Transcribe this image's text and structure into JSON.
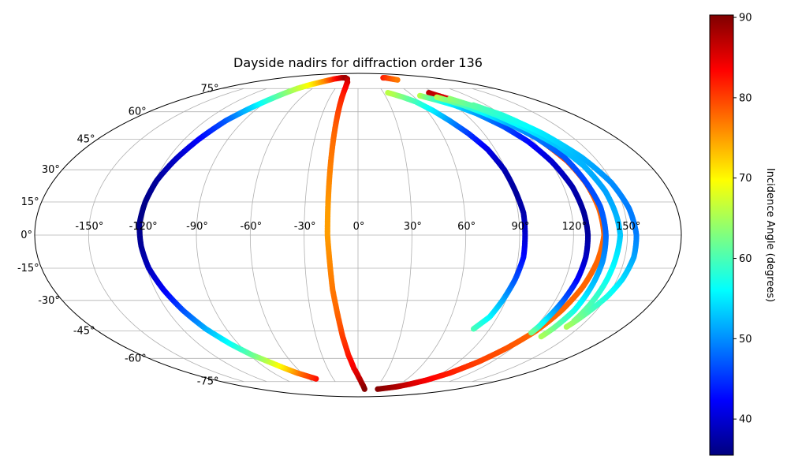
{
  "chart_data": {
    "type": "scatter",
    "projection": "mollweide",
    "title": "Dayside nadirs for diffraction order 136",
    "grid": true,
    "longitude_ticks": [
      "-150°",
      "-120°",
      "-90°",
      "-60°",
      "-30°",
      "0°",
      "30°",
      "60°",
      "90°",
      "120°",
      "150°"
    ],
    "latitude_ticks": [
      "-75°",
      "-60°",
      "-45°",
      "-30°",
      "-15°",
      "0°",
      "15°",
      "30°",
      "45°",
      "60°",
      "75°"
    ],
    "colorbar": {
      "label": "Incidence Angle (degrees)",
      "colormap": "jet",
      "range": [
        35.5,
        90.3
      ],
      "ticks": [
        "40",
        "50",
        "60",
        "70",
        "80",
        "90"
      ]
    },
    "series": [
      {
        "points_lon_lat_incidence": [
          [
            -51,
            -73,
            83
          ],
          [
            -58,
            -71,
            80
          ],
          [
            -65,
            -69,
            77
          ],
          [
            -72,
            -66,
            72
          ],
          [
            -80,
            -62,
            67
          ],
          [
            -88,
            -58,
            62
          ],
          [
            -96,
            -52,
            57
          ],
          [
            -104,
            -44,
            52
          ],
          [
            -110,
            -35,
            47
          ],
          [
            -115,
            -25,
            42
          ],
          [
            -119,
            -15,
            39
          ],
          [
            -121,
            -5,
            37
          ],
          [
            -122,
            5,
            36
          ],
          [
            -121,
            15,
            36
          ],
          [
            -119,
            25,
            37
          ],
          [
            -115,
            35,
            39
          ],
          [
            -110,
            45,
            42
          ],
          [
            -104,
            55,
            47
          ],
          [
            -97,
            62,
            53
          ],
          [
            -91,
            67,
            58
          ],
          [
            -86,
            71,
            62
          ],
          [
            -80,
            75,
            66
          ],
          [
            -72,
            78,
            70
          ],
          [
            -60,
            81,
            76
          ],
          [
            -50,
            83,
            82
          ],
          [
            -40,
            84,
            86
          ],
          [
            -30,
            84,
            89
          ]
        ]
      },
      {
        "points_lon_lat_incidence": [
          [
            -30,
            84,
            89
          ],
          [
            -23,
            83,
            88
          ],
          [
            -18,
            80,
            86
          ],
          [
            -17,
            76,
            84
          ],
          [
            -17,
            70,
            82
          ],
          [
            -17,
            60,
            80
          ],
          [
            -17,
            48,
            78
          ],
          [
            -17,
            35,
            77
          ],
          [
            -17,
            22,
            76
          ],
          [
            -17,
            10,
            75
          ],
          [
            -17,
            0,
            75
          ],
          [
            -16,
            -12,
            76
          ],
          [
            -15,
            -25,
            77
          ],
          [
            -13,
            -37,
            78
          ],
          [
            -11,
            -48,
            80
          ],
          [
            -8,
            -58,
            82
          ],
          [
            -4,
            -66,
            84
          ],
          [
            1,
            -72,
            86
          ],
          [
            5,
            -76,
            88
          ],
          [
            9,
            -79,
            89
          ],
          [
            12,
            -81,
            90
          ]
        ]
      },
      {
        "points_lon_lat_incidence": [
          [
            36,
            -81,
            90
          ],
          [
            50,
            -80,
            89
          ],
          [
            62,
            -79,
            88
          ],
          [
            74,
            -77,
            86
          ],
          [
            86,
            -74,
            84
          ],
          [
            98,
            -69,
            82
          ],
          [
            108,
            -62,
            80
          ],
          [
            116,
            -54,
            79
          ],
          [
            123,
            -45,
            78
          ],
          [
            128,
            -35,
            78
          ],
          [
            132,
            -24,
            78
          ],
          [
            135,
            -12,
            78
          ],
          [
            137,
            0,
            78
          ],
          [
            136,
            12,
            78
          ],
          [
            134,
            24,
            79
          ],
          [
            131,
            34,
            80
          ],
          [
            125,
            45,
            81
          ],
          [
            116,
            54,
            82
          ],
          [
            106,
            62,
            84
          ],
          [
            96,
            67,
            85
          ],
          [
            88,
            70,
            86
          ],
          [
            83,
            72,
            87
          ]
        ]
      },
      {
        "points_lon_lat_incidence": [
          [
            79,
            -44,
            60
          ],
          [
            85,
            -38,
            56
          ],
          [
            88,
            -30,
            52
          ],
          [
            91,
            -20,
            47
          ],
          [
            93,
            -10,
            43
          ],
          [
            93,
            0,
            40
          ],
          [
            93,
            10,
            38
          ],
          [
            91,
            20,
            37
          ],
          [
            89,
            30,
            38
          ],
          [
            85,
            40,
            41
          ],
          [
            79,
            48,
            45
          ],
          [
            72,
            55,
            50
          ],
          [
            65,
            61,
            55
          ],
          [
            57,
            66,
            59
          ],
          [
            48,
            69,
            62
          ],
          [
            40,
            71,
            65
          ],
          [
            35,
            72,
            66
          ]
        ]
      },
      {
        "points_lon_lat_incidence": [
          [
            68,
            70,
            66
          ],
          [
            72,
            69,
            63
          ],
          [
            80,
            67,
            59
          ],
          [
            90,
            64,
            55
          ],
          [
            100,
            59,
            51
          ],
          [
            109,
            52,
            47
          ],
          [
            116,
            44,
            43
          ],
          [
            121,
            34,
            40
          ],
          [
            125,
            22,
            38
          ],
          [
            127,
            10,
            37
          ],
          [
            128,
            0,
            37
          ],
          [
            128,
            -10,
            39
          ],
          [
            127,
            -20,
            42
          ],
          [
            125,
            -30,
            47
          ],
          [
            123,
            -38,
            53
          ],
          [
            122,
            -43,
            58
          ],
          [
            121,
            -46,
            62
          ]
        ]
      },
      {
        "points_lon_lat_incidence": [
          [
            84,
            69,
            66
          ],
          [
            90,
            67,
            63
          ],
          [
            98,
            64,
            60
          ],
          [
            107,
            59,
            56
          ],
          [
            116,
            53,
            52
          ],
          [
            124,
            46,
            49
          ],
          [
            131,
            36,
            47
          ],
          [
            134,
            25,
            46
          ],
          [
            137,
            13,
            47
          ],
          [
            138,
            0,
            48
          ],
          [
            138,
            -12,
            50
          ],
          [
            137,
            -24,
            53
          ],
          [
            136,
            -35,
            57
          ],
          [
            133,
            -44,
            62
          ],
          [
            131,
            -48,
            65
          ]
        ]
      },
      {
        "points_lon_lat_incidence": [
          [
            95,
            68,
            64
          ],
          [
            105,
            64,
            61
          ],
          [
            115,
            58,
            58
          ],
          [
            125,
            50,
            55
          ],
          [
            133,
            42,
            53
          ],
          [
            139,
            32,
            52
          ],
          [
            143,
            20,
            51
          ],
          [
            145,
            8,
            52
          ],
          [
            146,
            0,
            53
          ],
          [
            145,
            -10,
            55
          ],
          [
            144,
            -22,
            57
          ],
          [
            143,
            -32,
            60
          ],
          [
            142,
            -40,
            63
          ]
        ]
      },
      {
        "points_lon_lat_incidence": [
          [
            108,
            64,
            61
          ],
          [
            120,
            58,
            58
          ],
          [
            132,
            48,
            55
          ],
          [
            142,
            36,
            52
          ],
          [
            149,
            24,
            50
          ],
          [
            153,
            12,
            49
          ],
          [
            155,
            0,
            49
          ],
          [
            155,
            -10,
            51
          ],
          [
            153,
            -20,
            54
          ],
          [
            150,
            -28,
            57
          ],
          [
            146,
            -35,
            60
          ],
          [
            143,
            -40,
            63
          ],
          [
            141,
            -43,
            65
          ]
        ]
      },
      {
        "points_lon_lat_incidence": [
          [
            60,
            84,
            82
          ],
          [
            66,
            84,
            81
          ],
          [
            72,
            83,
            79
          ],
          [
            78,
            82,
            77
          ]
        ]
      }
    ]
  }
}
